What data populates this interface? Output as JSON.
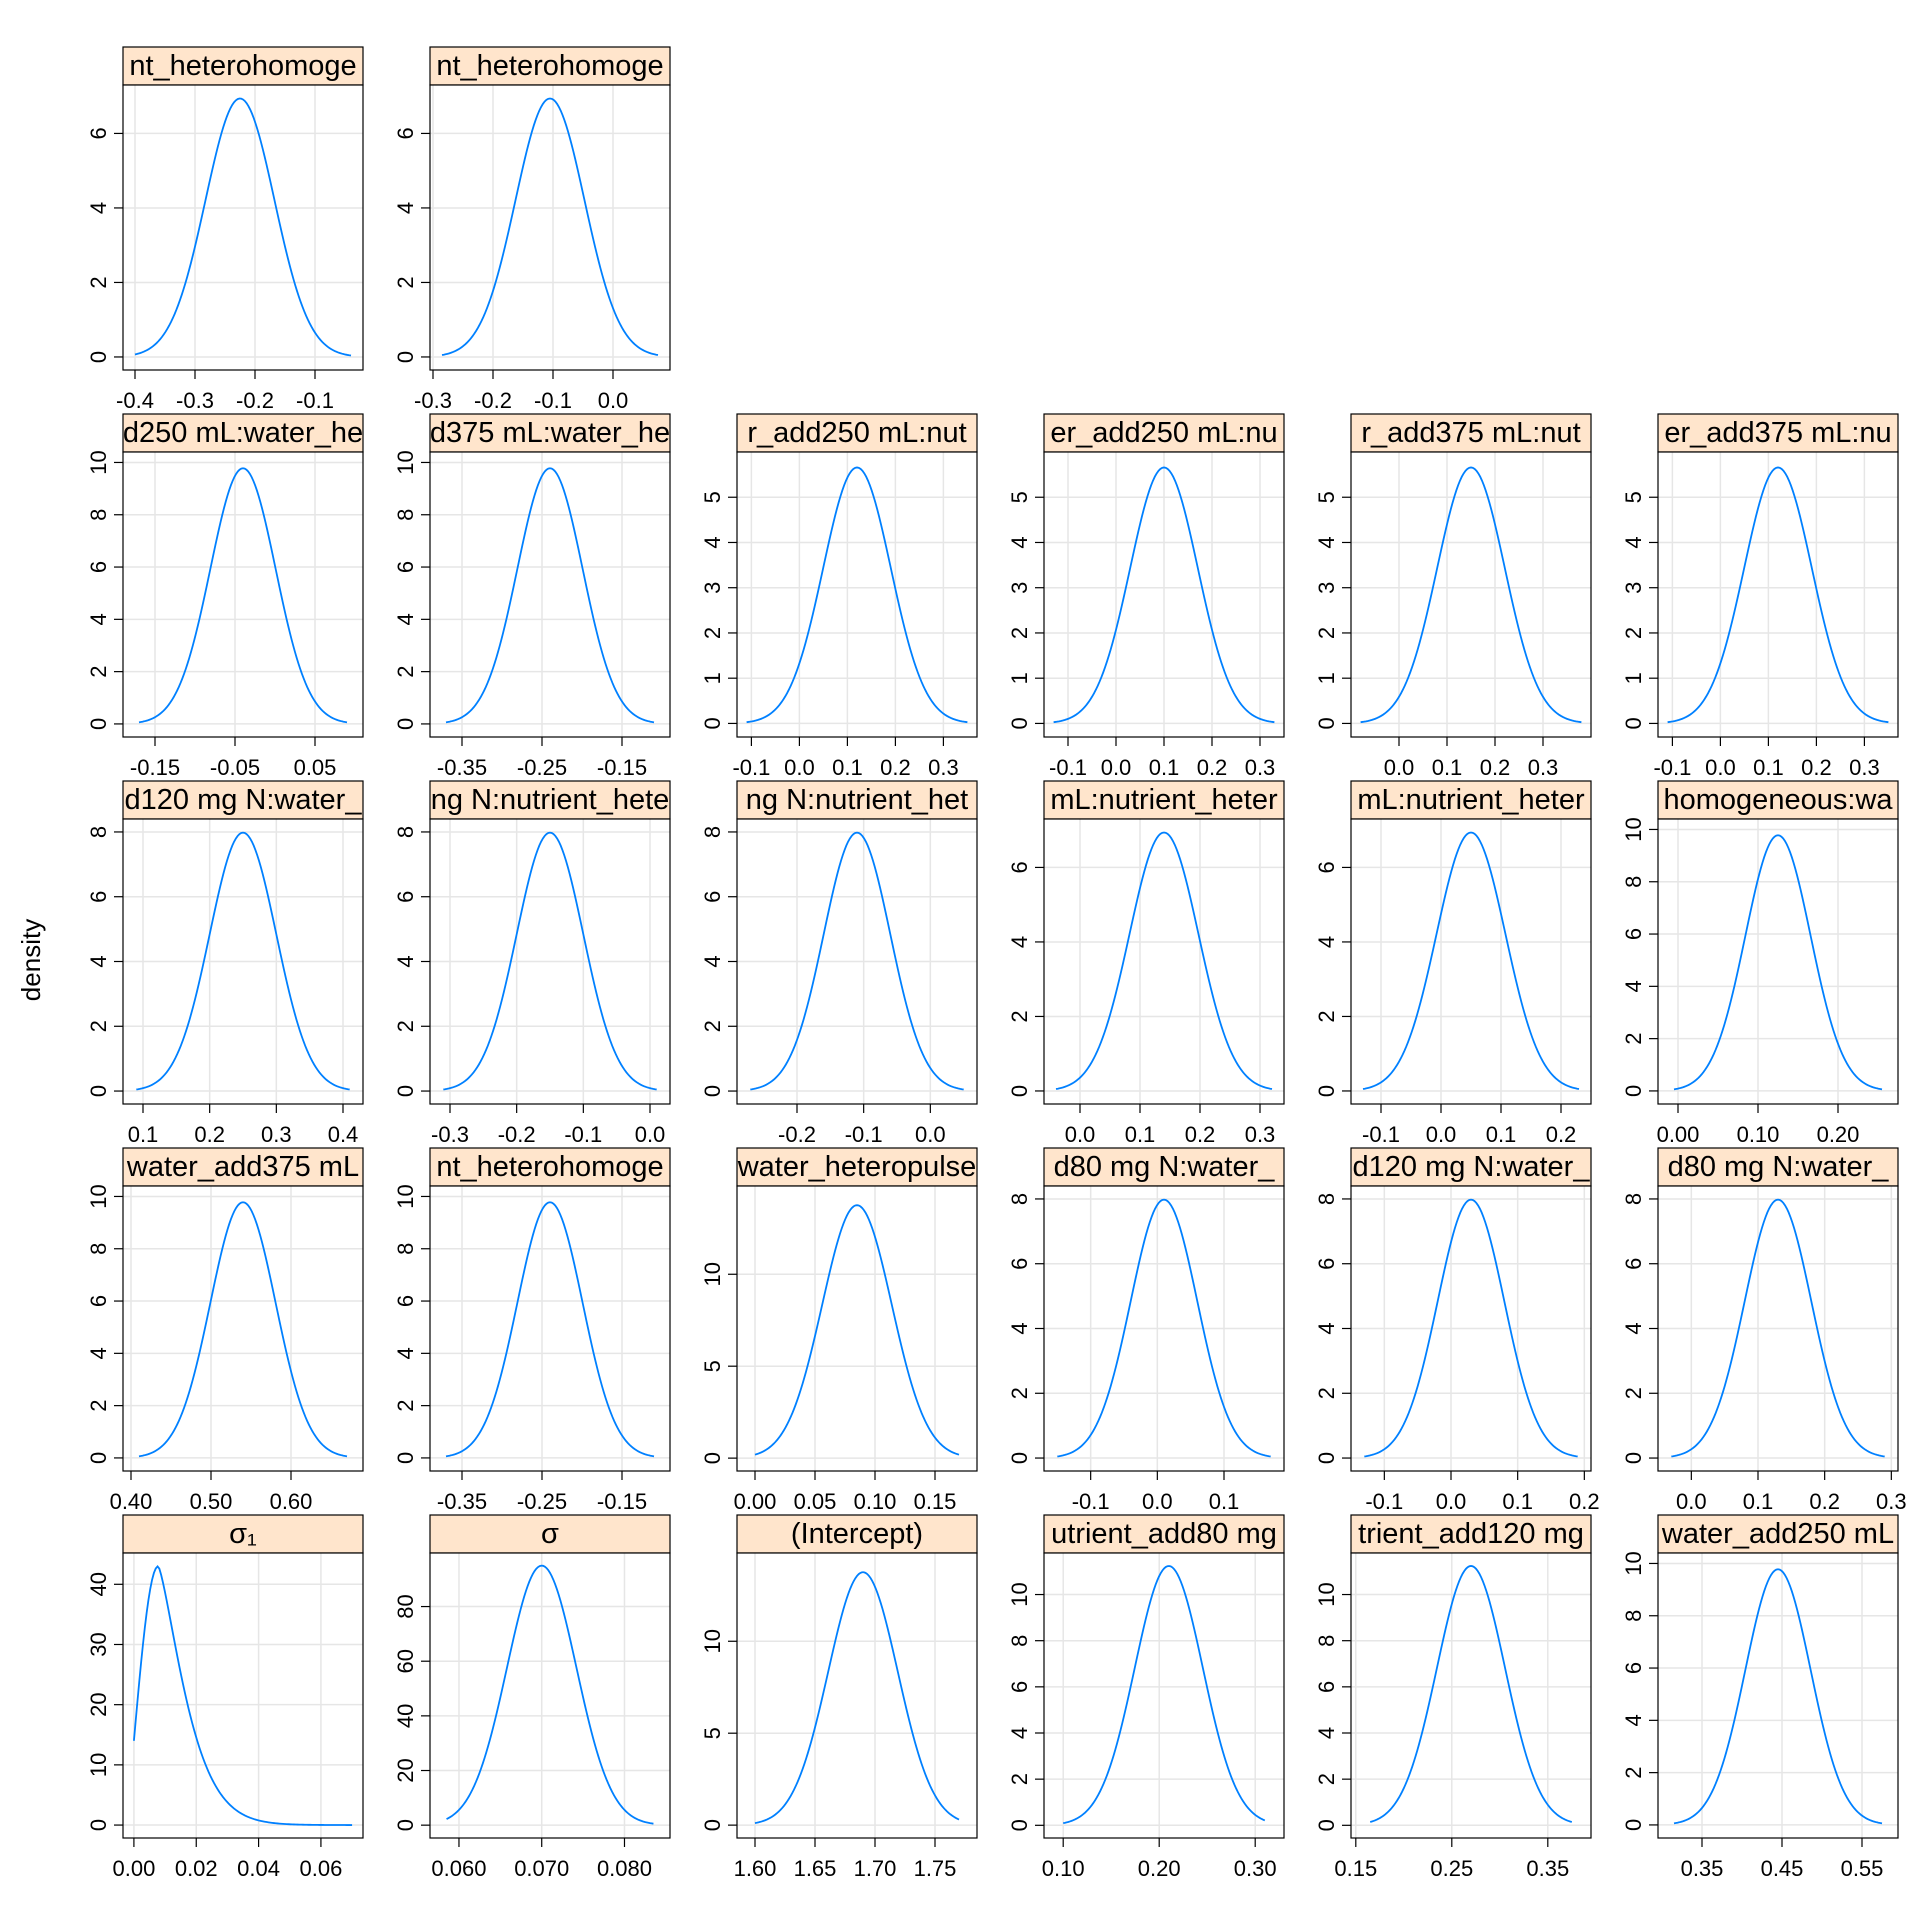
{
  "ylabel": "density",
  "colors": {
    "curve": "#0080ff",
    "strip": "#ffe5cc",
    "grid": "#e6e6e6",
    "frame": "#000000"
  },
  "chart_data": [
    {
      "type": "line",
      "title": "nt_heterohomoge",
      "xlim": [
        -0.42,
        -0.02
      ],
      "ylim": [
        -0.35,
        7.3
      ],
      "xticks": [
        -0.4,
        -0.3,
        -0.2,
        -0.1
      ],
      "xtick_labels": [
        "-0.4",
        "-0.3",
        "-0.2",
        "-0.1"
      ],
      "yticks": [
        0,
        2,
        4,
        6
      ],
      "ytick_labels": [
        "0",
        "2",
        "4",
        "6"
      ],
      "curve": {
        "kind": "normal",
        "mean": -0.225,
        "sd": 0.0575,
        "from": -0.4,
        "to": -0.04
      },
      "row": 0,
      "col": 0
    },
    {
      "type": "line",
      "title": "nt_heterohomoge",
      "xlim": [
        -0.305,
        0.095
      ],
      "ylim": [
        -0.35,
        7.3
      ],
      "xticks": [
        -0.3,
        -0.2,
        -0.1,
        0.0
      ],
      "xtick_labels": [
        "-0.3",
        "-0.2",
        "-0.1",
        "0.0"
      ],
      "yticks": [
        0,
        2,
        4,
        6
      ],
      "ytick_labels": [
        "0",
        "2",
        "4",
        "6"
      ],
      "curve": {
        "kind": "normal",
        "mean": -0.105,
        "sd": 0.0575,
        "from": -0.285,
        "to": 0.075
      },
      "row": 0,
      "col": 1
    },
    {
      "type": "line",
      "title": "d250 mL:water_he",
      "xlim": [
        -0.19,
        0.11
      ],
      "ylim": [
        -0.5,
        10.4
      ],
      "xticks": [
        -0.15,
        -0.05,
        0.05
      ],
      "xtick_labels": [
        "-0.15",
        "-0.05",
        "0.05"
      ],
      "yticks": [
        0,
        2,
        4,
        6,
        8,
        10
      ],
      "ytick_labels": [
        "0",
        "2",
        "4",
        "6",
        "8",
        "10"
      ],
      "curve": {
        "kind": "normal",
        "mean": -0.04,
        "sd": 0.0408,
        "from": -0.17,
        "to": 0.09
      },
      "row": 1,
      "col": 0
    },
    {
      "type": "line",
      "title": "d375 mL:water_he",
      "xlim": [
        -0.39,
        -0.09
      ],
      "ylim": [
        -0.5,
        10.4
      ],
      "xticks": [
        -0.35,
        -0.25,
        -0.15
      ],
      "xtick_labels": [
        "-0.35",
        "-0.25",
        "-0.15"
      ],
      "yticks": [
        0,
        2,
        4,
        6,
        8,
        10
      ],
      "ytick_labels": [
        "0",
        "2",
        "4",
        "6",
        "8",
        "10"
      ],
      "curve": {
        "kind": "normal",
        "mean": -0.24,
        "sd": 0.0408,
        "from": -0.37,
        "to": -0.11
      },
      "row": 1,
      "col": 1
    },
    {
      "type": "line",
      "title": "r_add250 mL:nut",
      "xlim": [
        -0.13,
        0.37
      ],
      "ylim": [
        -0.3,
        6.0
      ],
      "xticks": [
        -0.1,
        0.0,
        0.1,
        0.2,
        0.3
      ],
      "xtick_labels": [
        "-0.1",
        "0.0",
        "0.1",
        "0.2",
        "0.3"
      ],
      "yticks": [
        0,
        1,
        2,
        3,
        4,
        5
      ],
      "ytick_labels": [
        "0",
        "1",
        "2",
        "3",
        "4",
        "5"
      ],
      "curve": {
        "kind": "normal",
        "mean": 0.12,
        "sd": 0.0705,
        "from": -0.11,
        "to": 0.35
      },
      "row": 1,
      "col": 2
    },
    {
      "type": "line",
      "title": "er_add250 mL:nu",
      "xlim": [
        -0.15,
        0.35
      ],
      "ylim": [
        -0.3,
        6.0
      ],
      "xticks": [
        -0.1,
        0.0,
        0.1,
        0.2,
        0.3
      ],
      "xtick_labels": [
        "-0.1",
        "0.0",
        "0.1",
        "0.2",
        "0.3"
      ],
      "yticks": [
        0,
        1,
        2,
        3,
        4,
        5
      ],
      "ytick_labels": [
        "0",
        "1",
        "2",
        "3",
        "4",
        "5"
      ],
      "curve": {
        "kind": "normal",
        "mean": 0.1,
        "sd": 0.0705,
        "from": -0.13,
        "to": 0.33
      },
      "row": 1,
      "col": 3
    },
    {
      "type": "line",
      "title": "r_add375 mL:nut",
      "xlim": [
        -0.1,
        0.4
      ],
      "ylim": [
        -0.3,
        6.0
      ],
      "xticks": [
        0.0,
        0.1,
        0.2,
        0.3
      ],
      "xtick_labels": [
        "0.0",
        "0.1",
        "0.2",
        "0.3"
      ],
      "yticks": [
        0,
        1,
        2,
        3,
        4,
        5
      ],
      "ytick_labels": [
        "0",
        "1",
        "2",
        "3",
        "4",
        "5"
      ],
      "curve": {
        "kind": "normal",
        "mean": 0.15,
        "sd": 0.0705,
        "from": -0.08,
        "to": 0.38
      },
      "row": 1,
      "col": 4
    },
    {
      "type": "line",
      "title": "er_add375 mL:nu",
      "xlim": [
        -0.13,
        0.37
      ],
      "ylim": [
        -0.3,
        6.0
      ],
      "xticks": [
        -0.1,
        0.0,
        0.1,
        0.2,
        0.3
      ],
      "xtick_labels": [
        "-0.1",
        "0.0",
        "0.1",
        "0.2",
        "0.3"
      ],
      "yticks": [
        0,
        1,
        2,
        3,
        4,
        5
      ],
      "ytick_labels": [
        "0",
        "1",
        "2",
        "3",
        "4",
        "5"
      ],
      "curve": {
        "kind": "normal",
        "mean": 0.12,
        "sd": 0.0705,
        "from": -0.11,
        "to": 0.35
      },
      "row": 1,
      "col": 5
    },
    {
      "type": "line",
      "title": "d120 mg N:water_",
      "xlim": [
        0.07,
        0.43
      ],
      "ylim": [
        -0.4,
        8.4
      ],
      "xticks": [
        0.1,
        0.2,
        0.3,
        0.4
      ],
      "xtick_labels": [
        "0.1",
        "0.2",
        "0.3",
        "0.4"
      ],
      "yticks": [
        0,
        2,
        4,
        6,
        8
      ],
      "ytick_labels": [
        "0",
        "2",
        "4",
        "6",
        "8"
      ],
      "curve": {
        "kind": "normal",
        "mean": 0.25,
        "sd": 0.05,
        "from": 0.09,
        "to": 0.41
      },
      "row": 2,
      "col": 0
    },
    {
      "type": "line",
      "title": "ng N:nutrient_hete",
      "xlim": [
        -0.33,
        0.03
      ],
      "ylim": [
        -0.4,
        8.4
      ],
      "xticks": [
        -0.3,
        -0.2,
        -0.1,
        0.0
      ],
      "xtick_labels": [
        "-0.3",
        "-0.2",
        "-0.1",
        "0.0"
      ],
      "yticks": [
        0,
        2,
        4,
        6,
        8
      ],
      "ytick_labels": [
        "0",
        "2",
        "4",
        "6",
        "8"
      ],
      "curve": {
        "kind": "normal",
        "mean": -0.15,
        "sd": 0.05,
        "from": -0.31,
        "to": 0.01
      },
      "row": 2,
      "col": 1
    },
    {
      "type": "line",
      "title": "ng N:nutrient_het",
      "xlim": [
        -0.29,
        0.07
      ],
      "ylim": [
        -0.4,
        8.4
      ],
      "xticks": [
        -0.2,
        -0.1,
        0.0
      ],
      "xtick_labels": [
        "-0.2",
        "-0.1",
        "0.0"
      ],
      "yticks": [
        0,
        2,
        4,
        6,
        8
      ],
      "ytick_labels": [
        "0",
        "2",
        "4",
        "6",
        "8"
      ],
      "curve": {
        "kind": "normal",
        "mean": -0.11,
        "sd": 0.05,
        "from": -0.27,
        "to": 0.05
      },
      "row": 2,
      "col": 2
    },
    {
      "type": "line",
      "title": "mL:nutrient_heter",
      "xlim": [
        -0.06,
        0.34
      ],
      "ylim": [
        -0.35,
        7.3
      ],
      "xticks": [
        0.0,
        0.1,
        0.2,
        0.3
      ],
      "xtick_labels": [
        "0.0",
        "0.1",
        "0.2",
        "0.3"
      ],
      "yticks": [
        0,
        2,
        4,
        6
      ],
      "ytick_labels": [
        "0",
        "2",
        "4",
        "6"
      ],
      "curve": {
        "kind": "normal",
        "mean": 0.14,
        "sd": 0.0575,
        "from": -0.04,
        "to": 0.32
      },
      "row": 2,
      "col": 3
    },
    {
      "type": "line",
      "title": "mL:nutrient_heter",
      "xlim": [
        -0.15,
        0.25
      ],
      "ylim": [
        -0.35,
        7.3
      ],
      "xticks": [
        -0.1,
        0.0,
        0.1,
        0.2
      ],
      "xtick_labels": [
        "-0.1",
        "0.0",
        "0.1",
        "0.2"
      ],
      "yticks": [
        0,
        2,
        4,
        6
      ],
      "ytick_labels": [
        "0",
        "2",
        "4",
        "6"
      ],
      "curve": {
        "kind": "normal",
        "mean": 0.05,
        "sd": 0.0575,
        "from": -0.13,
        "to": 0.23
      },
      "row": 2,
      "col": 4
    },
    {
      "type": "line",
      "title": "homogeneous:wa",
      "xlim": [
        -0.025,
        0.275
      ],
      "ylim": [
        -0.5,
        10.4
      ],
      "xticks": [
        0.0,
        0.1,
        0.2
      ],
      "xtick_labels": [
        "0.00",
        "0.10",
        "0.20"
      ],
      "yticks": [
        0,
        2,
        4,
        6,
        8,
        10
      ],
      "ytick_labels": [
        "0",
        "2",
        "4",
        "6",
        "8",
        "10"
      ],
      "curve": {
        "kind": "normal",
        "mean": 0.125,
        "sd": 0.0408,
        "from": -0.005,
        "to": 0.255
      },
      "row": 2,
      "col": 5
    },
    {
      "type": "line",
      "title": "water_add375 mL",
      "xlim": [
        0.39,
        0.69
      ],
      "ylim": [
        -0.5,
        10.4
      ],
      "xticks": [
        0.4,
        0.5,
        0.6
      ],
      "xtick_labels": [
        "0.40",
        "0.50",
        "0.60"
      ],
      "yticks": [
        0,
        2,
        4,
        6,
        8,
        10
      ],
      "ytick_labels": [
        "0",
        "2",
        "4",
        "6",
        "8",
        "10"
      ],
      "curve": {
        "kind": "normal",
        "mean": 0.54,
        "sd": 0.0408,
        "from": 0.41,
        "to": 0.67
      },
      "row": 3,
      "col": 0
    },
    {
      "type": "line",
      "title": "nt_heterohomoge",
      "xlim": [
        -0.39,
        -0.09
      ],
      "ylim": [
        -0.5,
        10.4
      ],
      "xticks": [
        -0.35,
        -0.25,
        -0.15
      ],
      "xtick_labels": [
        "-0.35",
        "-0.25",
        "-0.15"
      ],
      "yticks": [
        0,
        2,
        4,
        6,
        8,
        10
      ],
      "ytick_labels": [
        "0",
        "2",
        "4",
        "6",
        "8",
        "10"
      ],
      "curve": {
        "kind": "normal",
        "mean": -0.24,
        "sd": 0.0408,
        "from": -0.37,
        "to": -0.11
      },
      "row": 3,
      "col": 1
    },
    {
      "type": "line",
      "title": "water_heteropulse",
      "xlim": [
        -0.015,
        0.185
      ],
      "ylim": [
        -0.7,
        14.8
      ],
      "xticks": [
        0.0,
        0.05,
        0.1,
        0.15
      ],
      "xtick_labels": [
        "0.00",
        "0.05",
        "0.10",
        "0.15"
      ],
      "yticks": [
        0,
        5,
        10
      ],
      "ytick_labels": [
        "0",
        "5",
        "10"
      ],
      "curve": {
        "kind": "normal",
        "mean": 0.085,
        "sd": 0.029,
        "from": 0.0,
        "to": 0.17
      },
      "row": 3,
      "col": 2
    },
    {
      "type": "line",
      "title": "d80 mg N:water_",
      "xlim": [
        -0.17,
        0.19
      ],
      "ylim": [
        -0.4,
        8.4
      ],
      "xticks": [
        -0.1,
        0.0,
        0.1
      ],
      "xtick_labels": [
        "-0.1",
        "0.0",
        "0.1"
      ],
      "yticks": [
        0,
        2,
        4,
        6,
        8
      ],
      "ytick_labels": [
        "0",
        "2",
        "4",
        "6",
        "8"
      ],
      "curve": {
        "kind": "normal",
        "mean": 0.01,
        "sd": 0.05,
        "from": -0.15,
        "to": 0.17
      },
      "row": 3,
      "col": 3
    },
    {
      "type": "line",
      "title": "d120 mg N:water_",
      "xlim": [
        -0.15,
        0.21
      ],
      "ylim": [
        -0.4,
        8.4
      ],
      "xticks": [
        -0.1,
        0.0,
        0.1,
        0.2
      ],
      "xtick_labels": [
        "-0.1",
        "0.0",
        "0.1",
        "0.2"
      ],
      "yticks": [
        0,
        2,
        4,
        6,
        8
      ],
      "ytick_labels": [
        "0",
        "2",
        "4",
        "6",
        "8"
      ],
      "curve": {
        "kind": "normal",
        "mean": 0.03,
        "sd": 0.05,
        "from": -0.13,
        "to": 0.19
      },
      "row": 3,
      "col": 4
    },
    {
      "type": "line",
      "title": "d80 mg N:water_",
      "xlim": [
        -0.05,
        0.31
      ],
      "ylim": [
        -0.4,
        8.4
      ],
      "xticks": [
        0.0,
        0.1,
        0.2,
        0.3
      ],
      "xtick_labels": [
        "0.0",
        "0.1",
        "0.2",
        "0.3"
      ],
      "yticks": [
        0,
        2,
        4,
        6,
        8
      ],
      "ytick_labels": [
        "0",
        "2",
        "4",
        "6",
        "8"
      ],
      "curve": {
        "kind": "normal",
        "mean": 0.13,
        "sd": 0.05,
        "from": -0.03,
        "to": 0.29
      },
      "row": 3,
      "col": 5
    },
    {
      "type": "line",
      "title": "σ₁",
      "xlim": [
        -0.0035,
        0.0735
      ],
      "ylim": [
        -2.15,
        45.2
      ],
      "xticks": [
        0.0,
        0.02,
        0.04,
        0.06
      ],
      "xtick_labels": [
        "0.00",
        "0.02",
        "0.04",
        "0.06"
      ],
      "yticks": [
        0,
        10,
        20,
        30,
        40
      ],
      "ytick_labels": [
        "0",
        "10",
        "20",
        "30",
        "40"
      ],
      "curve": {
        "kind": "skewed",
        "peak_x": 0.0078,
        "peak_y": 43,
        "start_y": 14,
        "from": 0.0,
        "to": 0.07
      },
      "row": 4,
      "col": 0
    },
    {
      "type": "line",
      "title": "σ",
      "xlim": [
        0.0565,
        0.0855
      ],
      "ylim": [
        -4.7,
        99.6
      ],
      "xticks": [
        0.06,
        0.07,
        0.08
      ],
      "xtick_labels": [
        "0.060",
        "0.070",
        "0.080"
      ],
      "yticks": [
        0,
        20,
        40,
        60,
        80
      ],
      "ytick_labels": [
        "0",
        "20",
        "40",
        "60",
        "80"
      ],
      "curve": {
        "kind": "normal",
        "mean": 0.07,
        "sd": 0.0042,
        "from": 0.0585,
        "to": 0.0835
      },
      "row": 4,
      "col": 1
    },
    {
      "type": "line",
      "title": "(Intercept)",
      "xlim": [
        1.585,
        1.785
      ],
      "ylim": [
        -0.7,
        14.8
      ],
      "xticks": [
        1.6,
        1.65,
        1.7,
        1.75
      ],
      "xtick_labels": [
        "1.60",
        "1.65",
        "1.70",
        "1.75"
      ],
      "yticks": [
        0,
        5,
        10
      ],
      "ytick_labels": [
        "0",
        "5",
        "10"
      ],
      "curve": {
        "kind": "normal",
        "mean": 1.69,
        "sd": 0.029,
        "from": 1.6,
        "to": 1.77
      },
      "row": 4,
      "col": 2
    },
    {
      "type": "line",
      "title": "utrient_add80 mg",
      "xlim": [
        0.08,
        0.33
      ],
      "ylim": [
        -0.55,
        11.8
      ],
      "xticks": [
        0.1,
        0.2,
        0.3
      ],
      "xtick_labels": [
        "0.10",
        "0.20",
        "0.30"
      ],
      "yticks": [
        0,
        2,
        4,
        6,
        8,
        10
      ],
      "ytick_labels": [
        "0",
        "2",
        "4",
        "6",
        "8",
        "10"
      ],
      "curve": {
        "kind": "normal",
        "mean": 0.21,
        "sd": 0.0355,
        "from": 0.1,
        "to": 0.31
      },
      "row": 4,
      "col": 3
    },
    {
      "type": "line",
      "title": "trient_add120 mg",
      "xlim": [
        0.145,
        0.395
      ],
      "ylim": [
        -0.55,
        11.8
      ],
      "xticks": [
        0.15,
        0.25,
        0.35
      ],
      "xtick_labels": [
        "0.15",
        "0.25",
        "0.35"
      ],
      "yticks": [
        0,
        2,
        4,
        6,
        8,
        10
      ],
      "ytick_labels": [
        "0",
        "2",
        "4",
        "6",
        "8",
        "10"
      ],
      "curve": {
        "kind": "normal",
        "mean": 0.27,
        "sd": 0.0355,
        "from": 0.165,
        "to": 0.375
      },
      "row": 4,
      "col": 4
    },
    {
      "type": "line",
      "title": "water_add250 mL",
      "xlim": [
        0.295,
        0.595
      ],
      "ylim": [
        -0.5,
        10.4
      ],
      "xticks": [
        0.35,
        0.45,
        0.55
      ],
      "xtick_labels": [
        "0.35",
        "0.45",
        "0.55"
      ],
      "yticks": [
        0,
        2,
        4,
        6,
        8,
        10
      ],
      "ytick_labels": [
        "0",
        "2",
        "4",
        "6",
        "8",
        "10"
      ],
      "curve": {
        "kind": "normal",
        "mean": 0.445,
        "sd": 0.0408,
        "from": 0.315,
        "to": 0.575
      },
      "row": 4,
      "col": 5
    }
  ]
}
